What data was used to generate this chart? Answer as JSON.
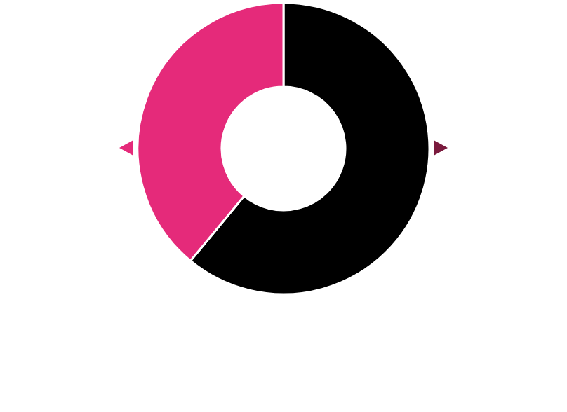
{
  "chart_data": {
    "type": "donut",
    "categories": [
      null,
      null
    ],
    "values": [
      61,
      39
    ],
    "colors": [
      "#000000",
      "#e52a7a"
    ]
  }
}
